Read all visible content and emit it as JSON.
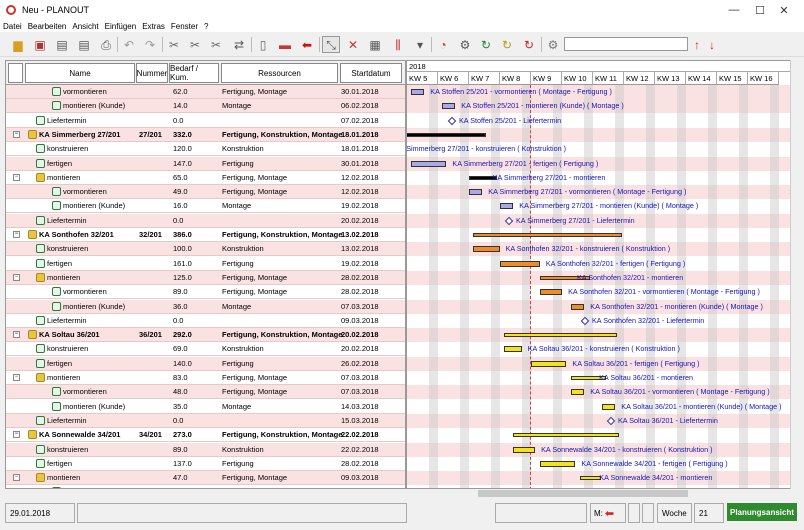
{
  "window": {
    "title": "Neu - PLANOUT",
    "minimize": "—",
    "maximize": "☐",
    "close": "✕"
  },
  "menu": [
    "Datei",
    "Bearbeiten",
    "Ansicht",
    "Einfügen",
    "Extras",
    "Fenster",
    "?"
  ],
  "columns": [
    "Name",
    "Nummer",
    "Bedarf / Kum.",
    "Ressourcen",
    "Startdatum"
  ],
  "rows": [
    {
      "name": "vormontieren",
      "num": "",
      "bedarf": "62.0",
      "res": "Fertigung, Montage",
      "start": "30.01.2018",
      "level": 3,
      "kind": "task",
      "bg": "pink"
    },
    {
      "name": "montieren (Kunde)",
      "num": "",
      "bedarf": "14.0",
      "res": "Montage",
      "start": "06.02.2018",
      "level": 3,
      "kind": "task",
      "bg": "pink"
    },
    {
      "name": "Liefertermin",
      "num": "",
      "bedarf": "0.0",
      "res": "",
      "start": "07.02.2018",
      "level": 2,
      "kind": "task",
      "bg": "white"
    },
    {
      "name": "KA Simmerberg 27/201",
      "num": "27/201",
      "bedarf": "332.0",
      "res": "Fertigung, Konstruktion, Montage",
      "start": "18.01.2018",
      "level": 0,
      "kind": "group",
      "bg": "pink",
      "bold": true,
      "toggle": "−"
    },
    {
      "name": "konstruieren",
      "num": "",
      "bedarf": "120.0",
      "res": "Konstruktion",
      "start": "18.01.2018",
      "level": 2,
      "kind": "task",
      "bg": "white"
    },
    {
      "name": "fertigen",
      "num": "",
      "bedarf": "147.0",
      "res": "Fertigung",
      "start": "30.01.2018",
      "level": 2,
      "kind": "task",
      "bg": "pink"
    },
    {
      "name": "montieren",
      "num": "",
      "bedarf": "65.0",
      "res": "Fertigung, Montage",
      "start": "12.02.2018",
      "level": 1,
      "kind": "group",
      "bg": "white",
      "toggle": "−"
    },
    {
      "name": "vormontieren",
      "num": "",
      "bedarf": "49.0",
      "res": "Fertigung, Montage",
      "start": "12.02.2018",
      "level": 3,
      "kind": "task",
      "bg": "pink"
    },
    {
      "name": "montieren (Kunde)",
      "num": "",
      "bedarf": "16.0",
      "res": "Montage",
      "start": "19.02.2018",
      "level": 3,
      "kind": "task",
      "bg": "white"
    },
    {
      "name": "Liefertermin",
      "num": "",
      "bedarf": "0.0",
      "res": "",
      "start": "20.02.2018",
      "level": 2,
      "kind": "task",
      "bg": "pink"
    },
    {
      "name": "KA Sonthofen 32/201",
      "num": "32/201",
      "bedarf": "386.0",
      "res": "Fertigung, Konstruktion, Montage",
      "start": "13.02.2018",
      "level": 0,
      "kind": "group",
      "bg": "white",
      "bold": true,
      "toggle": "−"
    },
    {
      "name": "konstruieren",
      "num": "",
      "bedarf": "100.0",
      "res": "Konstruktion",
      "start": "13.02.2018",
      "level": 2,
      "kind": "task",
      "bg": "pink"
    },
    {
      "name": "fertigen",
      "num": "",
      "bedarf": "161.0",
      "res": "Fertigung",
      "start": "19.02.2018",
      "level": 2,
      "kind": "task",
      "bg": "white"
    },
    {
      "name": "montieren",
      "num": "",
      "bedarf": "125.0",
      "res": "Fertigung, Montage",
      "start": "28.02.2018",
      "level": 1,
      "kind": "group",
      "bg": "pink",
      "toggle": "−"
    },
    {
      "name": "vormontieren",
      "num": "",
      "bedarf": "89.0",
      "res": "Fertigung, Montage",
      "start": "28.02.2018",
      "level": 3,
      "kind": "task",
      "bg": "white"
    },
    {
      "name": "montieren (Kunde)",
      "num": "",
      "bedarf": "36.0",
      "res": "Montage",
      "start": "07.03.2018",
      "level": 3,
      "kind": "task",
      "bg": "pink"
    },
    {
      "name": "Liefertermin",
      "num": "",
      "bedarf": "0.0",
      "res": "",
      "start": "09.03.2018",
      "level": 2,
      "kind": "task",
      "bg": "white"
    },
    {
      "name": "KA Soltau 36/201",
      "num": "36/201",
      "bedarf": "292.0",
      "res": "Fertigung, Konstruktion, Montage",
      "start": "20.02.2018",
      "level": 0,
      "kind": "group",
      "bg": "pink",
      "bold": true,
      "toggle": "−"
    },
    {
      "name": "konstruieren",
      "num": "",
      "bedarf": "69.0",
      "res": "Konstruktion",
      "start": "20.02.2018",
      "level": 2,
      "kind": "task",
      "bg": "white"
    },
    {
      "name": "fertigen",
      "num": "",
      "bedarf": "140.0",
      "res": "Fertigung",
      "start": "26.02.2018",
      "level": 2,
      "kind": "task",
      "bg": "pink"
    },
    {
      "name": "montieren",
      "num": "",
      "bedarf": "83.0",
      "res": "Fertigung, Montage",
      "start": "07.03.2018",
      "level": 1,
      "kind": "group",
      "bg": "white",
      "toggle": "−"
    },
    {
      "name": "vormontieren",
      "num": "",
      "bedarf": "48.0",
      "res": "Fertigung, Montage",
      "start": "07.03.2018",
      "level": 3,
      "kind": "task",
      "bg": "pink"
    },
    {
      "name": "montieren (Kunde)",
      "num": "",
      "bedarf": "35.0",
      "res": "Montage",
      "start": "14.03.2018",
      "level": 3,
      "kind": "task",
      "bg": "white"
    },
    {
      "name": "Liefertermin",
      "num": "",
      "bedarf": "0.0",
      "res": "",
      "start": "15.03.2018",
      "level": 2,
      "kind": "task",
      "bg": "pink"
    },
    {
      "name": "KA Sonnewalde 34/201",
      "num": "34/201",
      "bedarf": "273.0",
      "res": "Fertigung, Konstruktion, Montage",
      "start": "22.02.2018",
      "level": 0,
      "kind": "group",
      "bg": "white",
      "bold": true,
      "toggle": "−"
    },
    {
      "name": "konstruieren",
      "num": "",
      "bedarf": "89.0",
      "res": "Konstruktion",
      "start": "22.02.2018",
      "level": 2,
      "kind": "task",
      "bg": "pink"
    },
    {
      "name": "fertigen",
      "num": "",
      "bedarf": "137.0",
      "res": "Fertigung",
      "start": "28.02.2018",
      "level": 2,
      "kind": "task",
      "bg": "white"
    },
    {
      "name": "montieren",
      "num": "",
      "bedarf": "47.0",
      "res": "Fertigung, Montage",
      "start": "09.03.2018",
      "level": 1,
      "kind": "group",
      "bg": "pink",
      "toggle": "−"
    },
    {
      "name": "vormontieren",
      "num": "",
      "bedarf": "46.0",
      "res": "Fertigung, Montage",
      "start": "09.03.2018",
      "level": 3,
      "kind": "task",
      "bg": "white"
    }
  ],
  "gantt": {
    "year": "2018",
    "weeks": [
      "KW 5",
      "KW 6",
      "KW 7",
      "KW 8",
      "KW 9",
      "KW 10",
      "KW 11",
      "KW 12",
      "KW 13",
      "KW 14",
      "KW 15",
      "KW 16"
    ],
    "labels": [
      "KA Stoffen 25/201 - vormontieren ( Montage - Fertigung )",
      "KA Stoffen 25/201 - montieren (Kunde) ( Montage )",
      "KA Stoffen 25/201 - Liefertermin",
      "",
      "KA Simmerberg 27/201 - konstruieren ( Konstruktion )",
      "KA Simmerberg 27/201 - fertigen ( Fertigung )",
      "KA Simmerberg 27/201 - montieren",
      "KA Simmerberg 27/201 - vormontieren ( Montage - Fertigung )",
      "KA Simmerberg 27/201 - montieren (Kunde) ( Montage )",
      "KA Simmerberg 27/201 - Liefertermin",
      "",
      "KA Sonthofen 32/201 - konstruieren ( Konstruktion )",
      "KA Sonthofen 32/201 - fertigen ( Fertigung )",
      "KA Sonthofen 32/201 - montieren",
      "KA Sonthofen 32/201 - vormontieren ( Montage - Fertigung )",
      "KA Sonthofen 32/201 - montieren (Kunde) ( Montage )",
      "KA Sonthofen 32/201 - Liefertermin",
      "",
      "KA Soltau 36/201 - konstruieren ( Konstruktion )",
      "KA Soltau 36/201 - fertigen ( Fertigung )",
      "KA Soltau 36/201 - montieren",
      "KA Soltau 36/201 - vormontieren ( Montage - Fertigung )",
      "KA Soltau 36/201 - montieren (Kunde) ( Montage )",
      "KA Soltau 36/201 - Liefertermin",
      "",
      "KA Sonnewalde 34/201 - konstruieren ( Konstruktion )",
      "KA Sonnewalde 34/201 - fertigen ( Fertigung )",
      "KA Sonnewalde 34/201 - montieren",
      "KA Sonnewalde 34/201 - vormontieren ( Montage - Fertigung )"
    ]
  },
  "status": {
    "date": "29.01.2018",
    "m_label": "M:",
    "week_label": "Woche",
    "week_value": "21",
    "view_button": "Planungsansicht"
  },
  "colors": {
    "row_pink": "#fbe2e2",
    "bar_blue": "#a9a9e8",
    "bar_orange": "#f08a2a",
    "bar_yellow": "#f4e21a",
    "summary_black": "#000000",
    "label_blue": "#1515b8",
    "plan_green": "#2e8b2e"
  }
}
